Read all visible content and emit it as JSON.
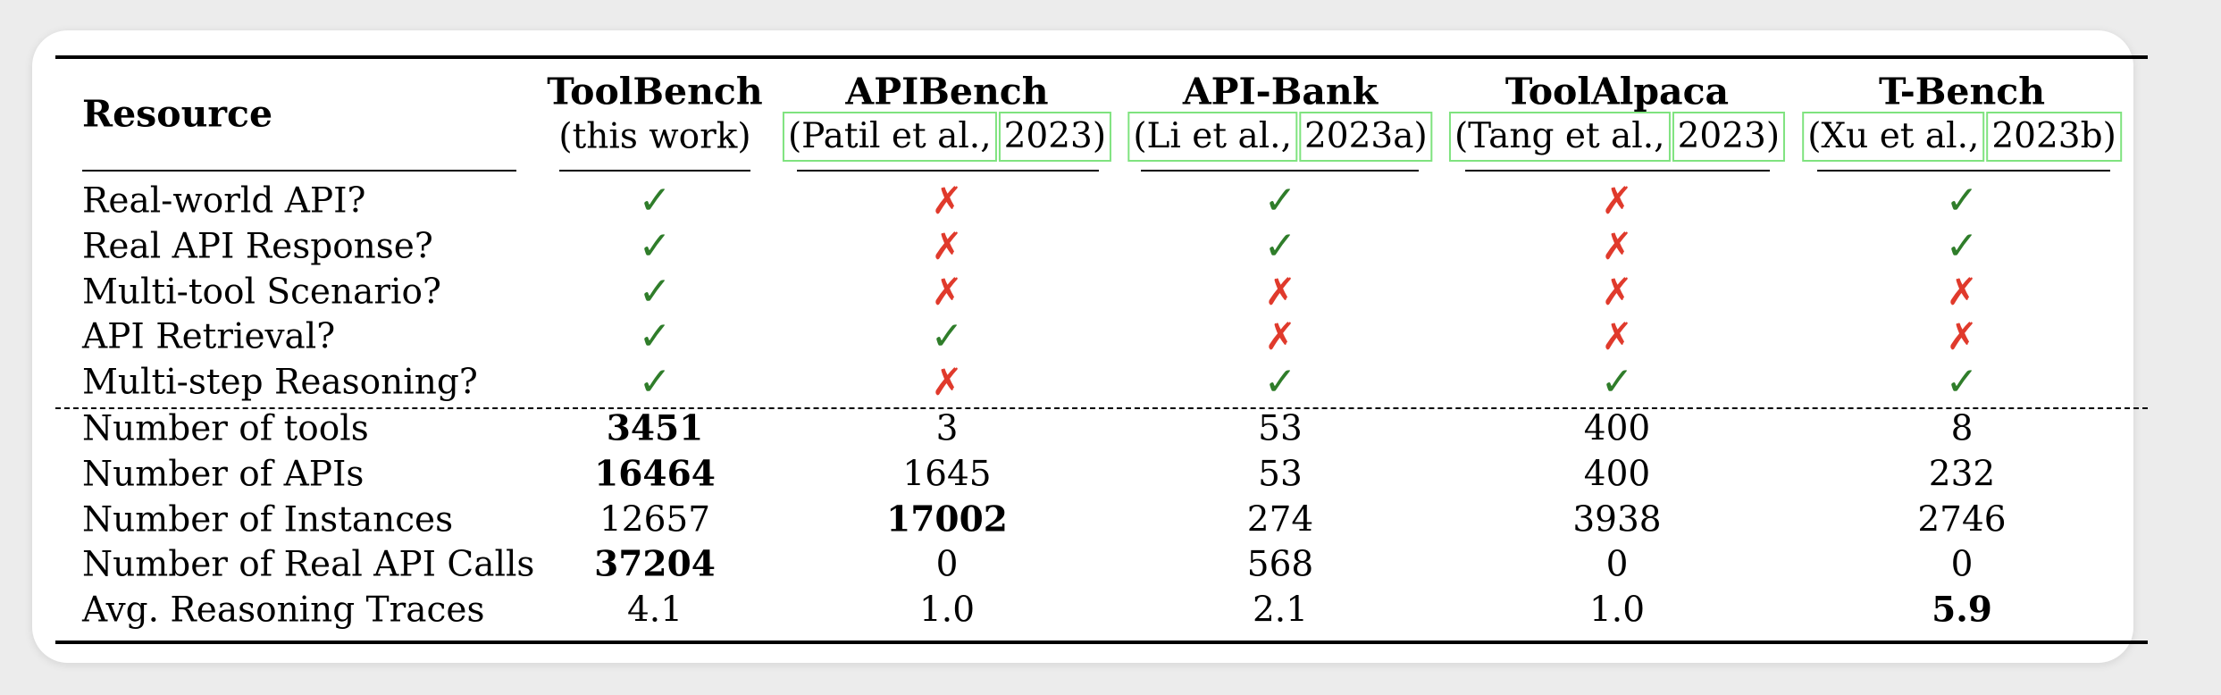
{
  "header": {
    "resource_label": "Resource",
    "columns": [
      {
        "name": "ToolBench",
        "subtitle": "(this work)",
        "cite_parts": null
      },
      {
        "name": "APIBench",
        "subtitle": null,
        "cite_parts": [
          "(Patil et al.,",
          "2023)"
        ]
      },
      {
        "name": "API-Bank",
        "subtitle": null,
        "cite_parts": [
          "(Li et al.,",
          "2023a)"
        ]
      },
      {
        "name": "ToolAlpaca",
        "subtitle": null,
        "cite_parts": [
          "(Tang et al.,",
          "2023)"
        ]
      },
      {
        "name": "T-Bench",
        "subtitle": null,
        "cite_parts": [
          "(Xu et al.,",
          "2023b)"
        ]
      }
    ]
  },
  "glyphs": {
    "check": "✓",
    "cross": "✗"
  },
  "colors": {
    "check": "#2f7d2a",
    "cross": "#e03a2c",
    "cite_box": "#7fe37f"
  },
  "feature_rows": [
    {
      "label": "Real-world API?",
      "values": [
        "check",
        "cross",
        "check",
        "cross",
        "check"
      ]
    },
    {
      "label": "Real API Response?",
      "values": [
        "check",
        "cross",
        "check",
        "cross",
        "check"
      ]
    },
    {
      "label": "Multi-tool Scenario?",
      "values": [
        "check",
        "cross",
        "cross",
        "cross",
        "cross"
      ]
    },
    {
      "label": "API Retrieval?",
      "values": [
        "check",
        "check",
        "cross",
        "cross",
        "cross"
      ]
    },
    {
      "label": "Multi-step Reasoning?",
      "values": [
        "check",
        "cross",
        "check",
        "check",
        "check"
      ]
    }
  ],
  "numeric_rows": [
    {
      "label": "Number of tools",
      "values": [
        "3451",
        "3",
        "53",
        "400",
        "8"
      ],
      "bold_index": 0
    },
    {
      "label": "Number of APIs",
      "values": [
        "16464",
        "1645",
        "53",
        "400",
        "232"
      ],
      "bold_index": 0
    },
    {
      "label": "Number of Instances",
      "values": [
        "12657",
        "17002",
        "274",
        "3938",
        "2746"
      ],
      "bold_index": 1
    },
    {
      "label": "Number of Real API Calls",
      "values": [
        "37204",
        "0",
        "568",
        "0",
        "0"
      ],
      "bold_index": 0
    },
    {
      "label": "Avg. Reasoning Traces",
      "values": [
        "4.1",
        "1.0",
        "2.1",
        "1.0",
        "5.9"
      ],
      "bold_index": 4
    }
  ]
}
